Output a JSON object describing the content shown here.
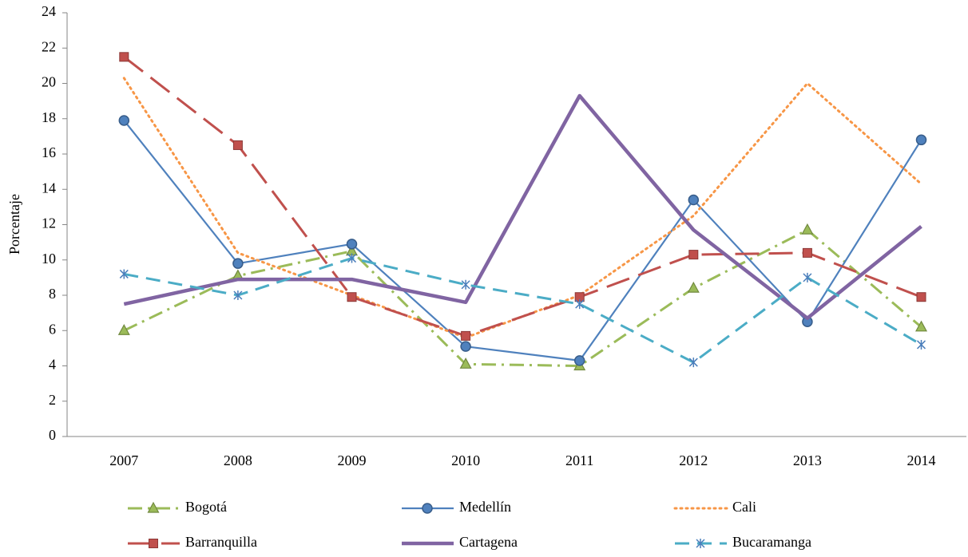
{
  "chart_data": {
    "type": "line",
    "y_label": "Porcentaje",
    "categories": [
      "2007",
      "2008",
      "2009",
      "2010",
      "2011",
      "2012",
      "2013",
      "2014"
    ],
    "ylim": [
      0,
      24
    ],
    "yticks": [
      0,
      2,
      4,
      6,
      8,
      10,
      12,
      14,
      16,
      18,
      20,
      22,
      24
    ],
    "series": [
      {
        "name": "Bogotá",
        "color": "#9BBB59",
        "dash": "dashdot",
        "marker": "triangle",
        "values": [
          6.0,
          9.1,
          10.5,
          4.1,
          4.0,
          8.4,
          11.7,
          6.2
        ]
      },
      {
        "name": "Medellín",
        "color": "#4F81BD",
        "dash": "solid",
        "marker": "circle",
        "values": [
          17.9,
          9.8,
          10.9,
          5.1,
          4.3,
          13.4,
          6.5,
          16.8
        ]
      },
      {
        "name": "Cali",
        "color": "#F79646",
        "dash": "dot",
        "marker": "none",
        "values": [
          20.3,
          10.4,
          8.0,
          5.6,
          8.0,
          12.5,
          20.0,
          14.3
        ]
      },
      {
        "name": "Barranquilla",
        "color": "#C0504D",
        "dash": "longdash",
        "marker": "square",
        "values": [
          21.5,
          16.5,
          7.9,
          5.7,
          7.9,
          10.3,
          10.4,
          7.9
        ]
      },
      {
        "name": "Cartagena",
        "color": "#8064A2",
        "dash": "solid",
        "marker": "none",
        "values": [
          7.5,
          8.9,
          8.9,
          7.6,
          19.3,
          11.7,
          6.7,
          11.9
        ]
      },
      {
        "name": "Bucaramanga",
        "color": "#4BACC6",
        "dash": "dash",
        "marker": "asterisk",
        "values": [
          9.2,
          8.0,
          10.1,
          8.6,
          7.5,
          4.2,
          9.0,
          5.2
        ]
      }
    ]
  }
}
